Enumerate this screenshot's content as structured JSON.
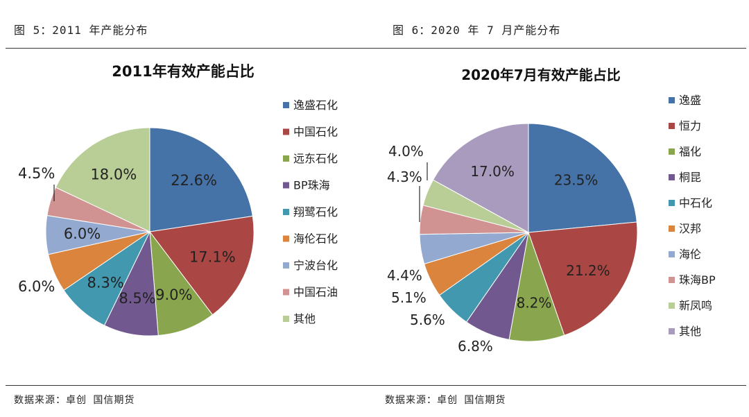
{
  "captions": {
    "left": "图 5：2011 年产能分布",
    "right": "图 6：2020 年 7 月产能分布"
  },
  "source": {
    "left": "数据来源：卓创  国信期货",
    "right": "数据来源：卓创  国信期货"
  },
  "chart_data": [
    {
      "type": "pie",
      "title": "2011年有效产能占比",
      "labels": [
        "逸盛石化",
        "中国石化",
        "远东石化",
        "BP珠海",
        "翔鹭石化",
        "海伦石化",
        "宁波台化",
        "中国石油",
        "其他"
      ],
      "values": [
        22.6,
        17.1,
        9.0,
        8.5,
        8.3,
        6.0,
        6.0,
        4.5,
        18.0
      ],
      "value_labels": [
        "22.6%",
        "17.1%",
        "9.0%",
        "8.5%",
        "8.3%",
        "6.0%",
        "6.0%",
        "4.5%",
        "18.0%"
      ],
      "colors": [
        "#4572A7",
        "#AA4643",
        "#89A54E",
        "#71588F",
        "#4198AF",
        "#DB843D",
        "#93A9CF",
        "#D19392",
        "#B9CD96"
      ],
      "legend_position": "right"
    },
    {
      "type": "pie",
      "title": "2020年7月有效产能占比",
      "labels": [
        "逸盛",
        "恒力",
        "福化",
        "桐昆",
        "中石化",
        "汉邦",
        "海伦",
        "珠海BP",
        "新凤鸣",
        "其他"
      ],
      "values": [
        23.5,
        21.2,
        8.2,
        6.8,
        5.6,
        5.1,
        4.4,
        4.3,
        4.0,
        17.0
      ],
      "value_labels": [
        "23.5%",
        "21.2%",
        "8.2%",
        "6.8%",
        "5.6%",
        "5.1%",
        "4.4%",
        "4.3%",
        "4.0%",
        "17.0%"
      ],
      "colors": [
        "#4572A7",
        "#AA4643",
        "#89A54E",
        "#71588F",
        "#4198AF",
        "#DB843D",
        "#93A9CF",
        "#D19392",
        "#B9CD96",
        "#A99BBD"
      ],
      "legend_position": "right"
    }
  ]
}
